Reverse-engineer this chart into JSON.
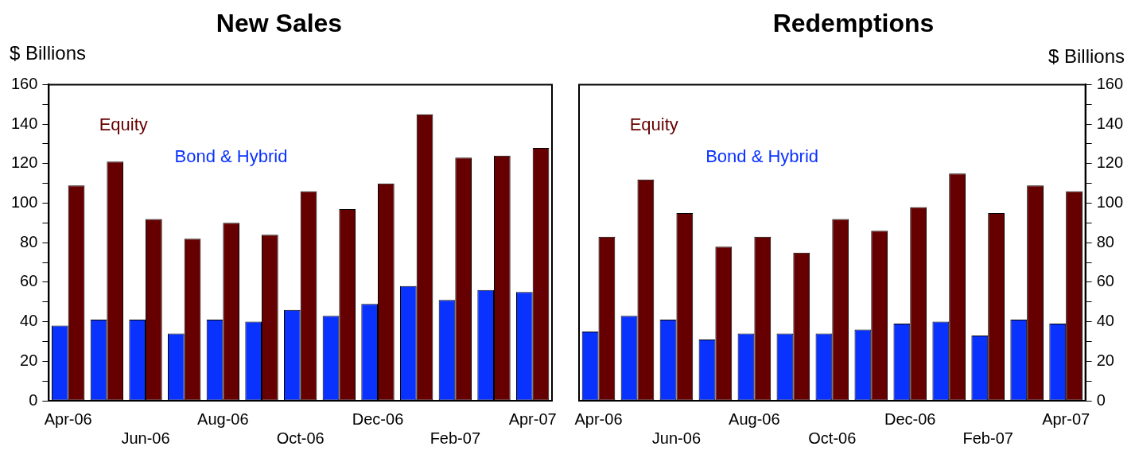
{
  "chart_data": [
    {
      "type": "bar",
      "title": "New Sales",
      "ylabel": "$ Billions",
      "categories": [
        "Apr-06",
        null,
        "Jun-06",
        null,
        "Aug-06",
        null,
        "Oct-06",
        null,
        "Dec-06",
        null,
        "Feb-07",
        null,
        "Apr-07"
      ],
      "series": [
        {
          "name": "Bond & Hybrid",
          "color": "#0a32ff",
          "values": [
            38,
            41,
            41,
            34,
            41,
            40,
            46,
            43,
            49,
            58,
            51,
            56,
            55
          ]
        },
        {
          "name": "Equity",
          "color": "#660000",
          "values": [
            109,
            121,
            92,
            82,
            90,
            84,
            106,
            97,
            110,
            145,
            123,
            124,
            128
          ]
        }
      ],
      "ylim": [
        0,
        160
      ],
      "yticks": [
        0,
        {
          "value": 10,
          "label": null
        },
        20,
        {
          "value": 30,
          "label": null
        },
        40,
        {
          "value": 50,
          "label": null
        },
        60,
        {
          "value": 70,
          "label": null
        },
        80,
        {
          "value": 90,
          "label": null
        },
        100,
        {
          "value": 110,
          "label": null
        },
        120,
        {
          "value": 130,
          "label": null
        },
        140,
        {
          "value": 150,
          "label": null
        },
        160
      ],
      "legend": "top left"
    },
    {
      "type": "bar",
      "title": "Redemptions",
      "y2label": "$ Billions",
      "categories": [
        "Apr-06",
        null,
        "Jun-06",
        null,
        "Aug-06",
        null,
        "Oct-06",
        null,
        "Dec-06",
        null,
        "Feb-07",
        null,
        "Apr-07"
      ],
      "series": [
        {
          "name": "Bond & Hybrid",
          "color": "#0a32ff",
          "axis": "y2",
          "values": [
            35,
            43,
            41,
            31,
            34,
            34,
            34,
            36,
            39,
            40,
            33,
            41,
            39
          ]
        },
        {
          "name": "Equity",
          "color": "#660000",
          "axis": "y2",
          "values": [
            83,
            112,
            95,
            78,
            83,
            75,
            92,
            86,
            98,
            115,
            95,
            109,
            106
          ]
        }
      ],
      "y2lim": [
        0,
        160
      ],
      "y2ticks": [
        0,
        {
          "value": 10,
          "label": null
        },
        20,
        {
          "value": 30,
          "label": null
        },
        40,
        {
          "value": 50,
          "label": null
        },
        60,
        {
          "value": 70,
          "label": null
        },
        80,
        {
          "value": 90,
          "label": null
        },
        100,
        {
          "value": 110,
          "label": null
        },
        120,
        {
          "value": 130,
          "label": null
        },
        140,
        {
          "value": 150,
          "label": null
        },
        160
      ],
      "legend": "top left"
    }
  ]
}
